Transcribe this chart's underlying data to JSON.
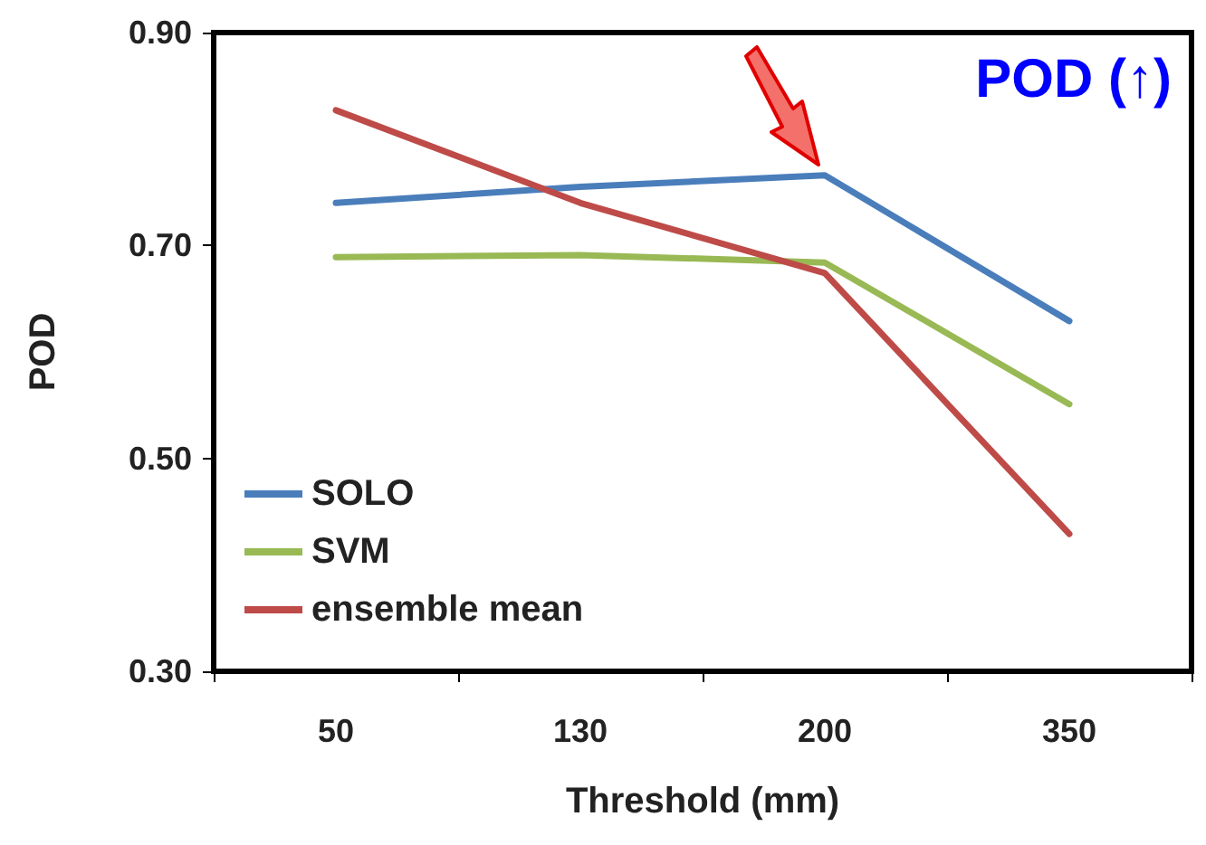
{
  "chart_data": {
    "type": "line",
    "title": "POD (↑)",
    "xlabel": "Threshold (mm)",
    "ylabel": "POD",
    "categories": [
      "50",
      "130",
      "200",
      "350"
    ],
    "series": [
      {
        "name": "SOLO",
        "color": "#4a7ebb",
        "values": [
          0.74,
          0.755,
          0.766,
          0.629
        ]
      },
      {
        "name": "SVM",
        "color": "#98b954",
        "values": [
          0.689,
          0.691,
          0.684,
          0.551
        ]
      },
      {
        "name": "ensemble mean",
        "color": "#be4b48",
        "values": [
          0.827,
          0.74,
          0.674,
          0.429
        ]
      }
    ],
    "ylim": [
      0.3,
      0.9
    ],
    "yticks": [
      {
        "value": 0.3,
        "label": "0.30"
      },
      {
        "value": 0.5,
        "label": "0.50"
      },
      {
        "value": 0.7,
        "label": "0.70"
      },
      {
        "value": 0.9,
        "label": "0.90"
      }
    ],
    "grid": false,
    "legend": "bottom left",
    "marker": "none",
    "line_style": "solid"
  }
}
